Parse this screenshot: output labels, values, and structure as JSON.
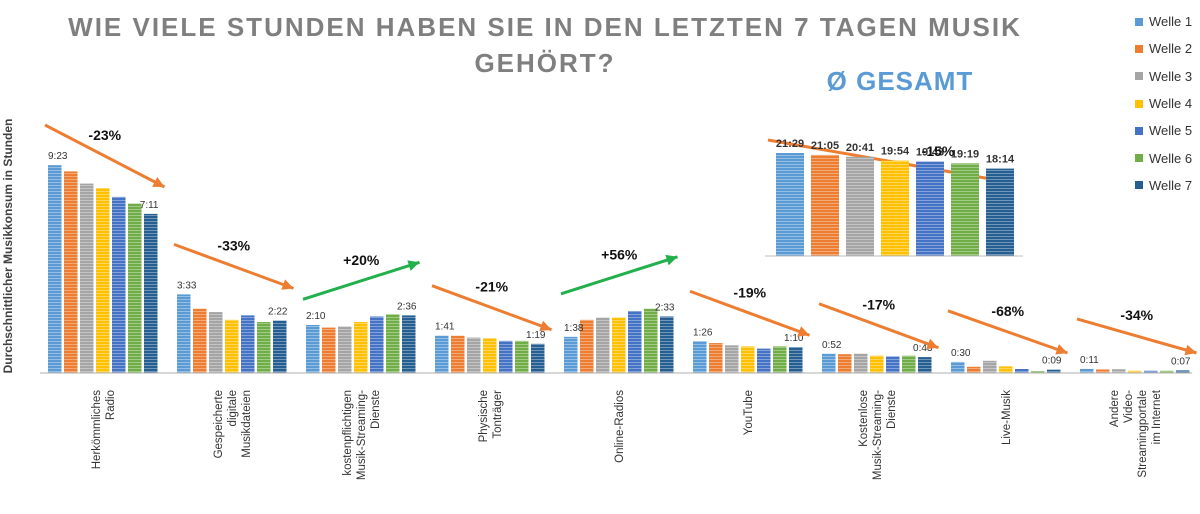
{
  "title": {
    "line1": "WIE VIELE STUNDEN HABEN SIE IN DEN LETZTEN 7 TAGEN MUSIK",
    "line2": "GEHÖRT?"
  },
  "ylabel": "Durchschnittlicher Musikkonsum in Stunden",
  "inset_title": "Ø GESAMT",
  "legend": [
    "Welle 1",
    "Welle 2",
    "Welle 3",
    "Welle 4",
    "Welle 5",
    "Welle 6",
    "Welle 7"
  ],
  "colors": {
    "series": [
      "#5b9bd5",
      "#ed7d31",
      "#a5a5a5",
      "#ffc000",
      "#4472c4",
      "#70ad47",
      "#255e91"
    ],
    "trend_down": "#ed7d31",
    "trend_up": "#21b04b",
    "title": "#7f7f7f",
    "inset_title": "#5b9bd5"
  },
  "chart_data": [
    {
      "type": "bar",
      "title": "WIE VIELE STUNDEN HABEN SIE IN DEN LETZTEN 7 TAGEN MUSIK GEHÖRT?",
      "ylabel": "Durchschnittlicher Musikkonsum in Stunden",
      "unit": "hours (h:mm)",
      "ylim": [
        0,
        10
      ],
      "grid": false,
      "legend_position": "right",
      "series_names": [
        "Welle 1",
        "Welle 2",
        "Welle 3",
        "Welle 4",
        "Welle 5",
        "Welle 6",
        "Welle 7"
      ],
      "categories": [
        {
          "label": [
            "Herkömmliches",
            "Radio"
          ],
          "values": [
            9.383,
            9.1,
            8.55,
            8.35,
            7.95,
            7.65,
            7.183
          ],
          "first_label": "9:23",
          "last_label": "7:11",
          "change": "-23%",
          "direction": "down"
        },
        {
          "label": [
            "Gespeicherte",
            "digitale",
            "Musikdateien"
          ],
          "values": [
            3.55,
            2.9,
            2.75,
            2.4,
            2.6,
            2.3,
            2.367
          ],
          "first_label": "3:33",
          "last_label": "2:22",
          "change": "-33%",
          "direction": "down"
        },
        {
          "label": [
            "kostenpflichtigen",
            "Musik-Streaming-",
            "Dienste"
          ],
          "values": [
            2.167,
            2.05,
            2.1,
            2.3,
            2.55,
            2.65,
            2.6
          ],
          "first_label": "2:10",
          "last_label": "2:36",
          "change": "+20%",
          "direction": "up"
        },
        {
          "label": [
            "Physische",
            "Tonträger"
          ],
          "values": [
            1.683,
            1.68,
            1.6,
            1.57,
            1.45,
            1.45,
            1.317
          ],
          "first_label": "1:41",
          "last_label": "1:19",
          "change": "-21%",
          "direction": "down"
        },
        {
          "label": [
            "Online-Radios"
          ],
          "values": [
            1.633,
            2.4,
            2.5,
            2.5,
            2.8,
            2.9,
            2.55
          ],
          "first_label": "1:38",
          "last_label": "2:33",
          "change": "+56%",
          "direction": "up"
        },
        {
          "label": [
            "YouTube"
          ],
          "values": [
            1.433,
            1.35,
            1.25,
            1.2,
            1.1,
            1.2,
            1.167
          ],
          "first_label": "1:26",
          "last_label": "1:10",
          "change": "-19%",
          "direction": "down"
        },
        {
          "label": [
            "Kostenlose",
            "Musik-Streaming-",
            "Dienste"
          ],
          "values": [
            0.867,
            0.85,
            0.87,
            0.78,
            0.75,
            0.78,
            0.717
          ],
          "first_label": "0:52",
          "last_label": "0:43",
          "change": "-17%",
          "direction": "down"
        },
        {
          "label": [
            "Live-Musik"
          ],
          "values": [
            0.5,
            0.28,
            0.55,
            0.3,
            0.18,
            0.05,
            0.15
          ],
          "first_label": "0:30",
          "last_label": "0:09",
          "change": "-68%",
          "direction": "down"
        },
        {
          "label": [
            "Andere",
            "Video-",
            "Streamingportale",
            "im Internet"
          ],
          "values": [
            0.183,
            0.16,
            0.17,
            0.1,
            0.1,
            0.1,
            0.117
          ],
          "first_label": "0:11",
          "last_label": "0:07",
          "change": "-34%",
          "direction": "down"
        }
      ]
    },
    {
      "type": "bar",
      "title": "Ø GESAMT",
      "unit": "hours (h:mm)",
      "series_names": [
        "Welle 1",
        "Welle 2",
        "Welle 3",
        "Welle 4",
        "Welle 5",
        "Welle 6",
        "Welle 7"
      ],
      "values": [
        21.483,
        21.083,
        20.683,
        19.9,
        19.717,
        19.317,
        18.233
      ],
      "labels": [
        "21:29",
        "21:05",
        "20:41",
        "19:54",
        "19:43",
        "19:19",
        "18:14"
      ],
      "change": "-15%",
      "direction": "down"
    }
  ]
}
